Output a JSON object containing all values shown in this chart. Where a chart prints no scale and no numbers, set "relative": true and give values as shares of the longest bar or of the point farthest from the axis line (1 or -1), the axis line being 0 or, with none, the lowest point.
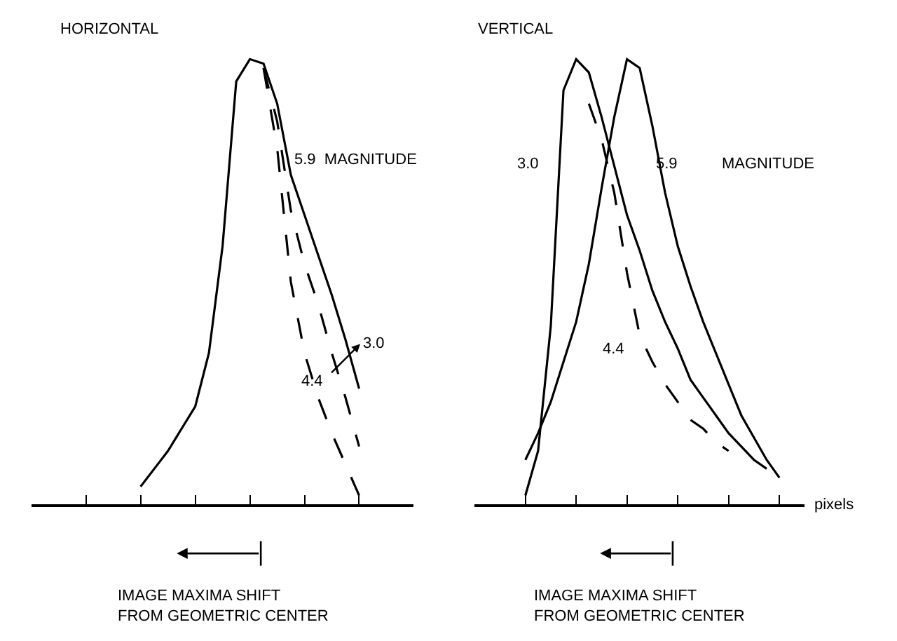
{
  "chart_data": [
    {
      "type": "line",
      "title": "HORIZONTAL",
      "relative": true,
      "xlabel": "IMAGE MAXIMA SHIFT\nFROM GEOMETRIC CENTER",
      "marker": "none",
      "categories": [
        null,
        null,
        null,
        null,
        null,
        null,
        null,
        null,
        null,
        null,
        null,
        null,
        null,
        null,
        null,
        null,
        null,
        null,
        null,
        null,
        null,
        null,
        null,
        null,
        null
      ],
      "series": [
        {
          "color": "#000000",
          "line_style": "solid",
          "values": [
            null,
            null,
            null,
            null,
            0.04,
            0.08,
            0.12,
            0.17,
            0.22,
            0.34,
            0.58,
            0.95,
            1.0,
            0.99,
            0.9,
            0.74,
            0.65,
            0.56,
            0.47,
            0.37,
            0.26,
            null,
            null,
            null,
            null
          ]
        },
        {
          "color": "#000000",
          "line_style": "dashed",
          "values": [
            null,
            null,
            null,
            null,
            null,
            null,
            null,
            null,
            null,
            null,
            null,
            null,
            null,
            0.98,
            0.86,
            0.66,
            0.54,
            0.45,
            0.34,
            0.24,
            0.13,
            null,
            null,
            null,
            null
          ]
        },
        {
          "color": "#000000",
          "line_style": "dashed",
          "values": [
            null,
            null,
            null,
            null,
            null,
            null,
            null,
            null,
            null,
            null,
            null,
            null,
            null,
            0.98,
            0.8,
            0.5,
            0.34,
            0.24,
            0.16,
            0.09,
            0.02,
            null,
            null,
            null,
            null
          ]
        }
      ],
      "annotations": [
        "5.9  MAGNITUDE",
        "3.0",
        "4.4"
      ]
    },
    {
      "type": "line",
      "title": "VERTICAL",
      "relative": true,
      "xlabel": "IMAGE MAXIMA SHIFT\nFROM GEOMETRIC CENTER",
      "marker": "none",
      "categories": [
        null,
        null,
        null,
        null,
        null,
        null,
        null,
        null,
        null,
        null,
        null,
        null,
        null,
        null,
        null,
        null,
        null,
        null,
        null,
        null,
        null
      ],
      "series": [
        {
          "color": "#000000",
          "line_style": "solid",
          "values": [
            0.02,
            0.12,
            0.4,
            0.93,
            1.0,
            0.97,
            0.87,
            0.76,
            0.65,
            0.57,
            0.48,
            0.41,
            0.35,
            0.28,
            0.24,
            0.2,
            0.16,
            0.13,
            0.1,
            0.08,
            null
          ]
        },
        {
          "color": "#000000",
          "line_style": "solid",
          "values": [
            0.1,
            0.16,
            0.23,
            0.32,
            0.41,
            0.54,
            0.71,
            0.87,
            1.0,
            0.98,
            0.85,
            0.7,
            0.58,
            0.49,
            0.41,
            0.34,
            0.27,
            0.2,
            0.15,
            0.1,
            0.06
          ]
        },
        {
          "color": "#000000",
          "line_style": "dashed",
          "values": [
            null,
            null,
            null,
            null,
            null,
            0.9,
            0.82,
            0.7,
            0.52,
            0.38,
            0.32,
            0.27,
            0.23,
            0.19,
            0.17,
            0.14,
            0.12,
            null,
            null,
            null,
            null
          ]
        }
      ],
      "annotations": [
        "3.0",
        "5.9",
        "MAGNITUDE",
        "4.4",
        "pixels"
      ]
    }
  ]
}
